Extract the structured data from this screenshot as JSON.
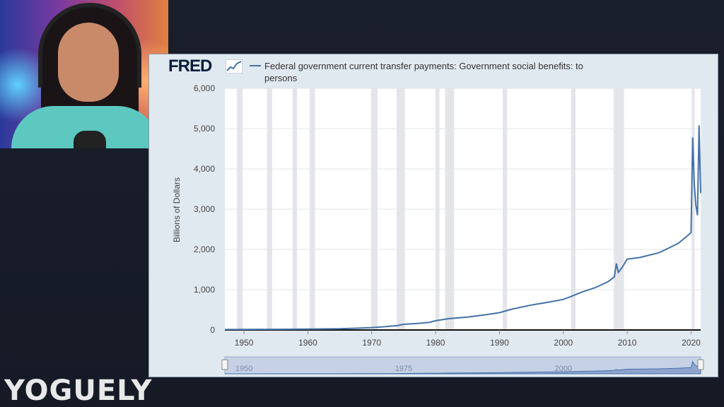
{
  "brand": "YOGUELY",
  "logo": {
    "text": "FRED",
    "icon": "chart-line-icon"
  },
  "legend": {
    "label": "Federal government current transfer payments: Government social benefits: to persons"
  },
  "chart_data": {
    "type": "line",
    "title": "",
    "ylabel": "Billions of Dollars",
    "xlabel": "",
    "xlim": [
      1947,
      2021.5
    ],
    "ylim": [
      0,
      6000
    ],
    "x_ticks": [
      1950,
      1960,
      1970,
      1980,
      1990,
      2000,
      2010,
      2020
    ],
    "y_ticks": [
      0,
      1000,
      2000,
      3000,
      4000,
      5000,
      6000
    ],
    "y_tick_labels": [
      "0",
      "1,000",
      "2,000",
      "3,000",
      "4,000",
      "5,000",
      "6,000"
    ],
    "grid": true,
    "recessions": [
      [
        1948.9,
        1949.8
      ],
      [
        1953.6,
        1954.4
      ],
      [
        1957.6,
        1958.3
      ],
      [
        1960.3,
        1961.1
      ],
      [
        1969.9,
        1970.9
      ],
      [
        1973.9,
        1975.2
      ],
      [
        1980.0,
        1980.6
      ],
      [
        1981.5,
        1982.9
      ],
      [
        1990.5,
        1991.2
      ],
      [
        2001.2,
        2001.9
      ],
      [
        2007.9,
        2009.5
      ],
      [
        2020.1,
        2020.4
      ]
    ],
    "series": [
      {
        "name": "Federal government current transfer payments: Government social benefits: to persons",
        "color": "#4472a8",
        "points": [
          [
            1947,
            10
          ],
          [
            1950,
            12
          ],
          [
            1955,
            15
          ],
          [
            1960,
            22
          ],
          [
            1965,
            30
          ],
          [
            1968,
            45
          ],
          [
            1970,
            60
          ],
          [
            1972,
            80
          ],
          [
            1974,
            110
          ],
          [
            1975,
            140
          ],
          [
            1977,
            160
          ],
          [
            1979,
            190
          ],
          [
            1980,
            230
          ],
          [
            1982,
            280
          ],
          [
            1985,
            320
          ],
          [
            1988,
            380
          ],
          [
            1990,
            430
          ],
          [
            1992,
            520
          ],
          [
            1995,
            620
          ],
          [
            1998,
            700
          ],
          [
            2000,
            760
          ],
          [
            2001,
            820
          ],
          [
            2003,
            950
          ],
          [
            2005,
            1050
          ],
          [
            2007,
            1200
          ],
          [
            2008,
            1320
          ],
          [
            2008.3,
            1650
          ],
          [
            2008.6,
            1430
          ],
          [
            2009.2,
            1550
          ],
          [
            2010,
            1760
          ],
          [
            2012,
            1800
          ],
          [
            2015,
            1920
          ],
          [
            2018,
            2150
          ],
          [
            2019.5,
            2350
          ],
          [
            2020.0,
            2420
          ],
          [
            2020.25,
            4780
          ],
          [
            2020.5,
            3600
          ],
          [
            2020.75,
            3100
          ],
          [
            2021.0,
            2850
          ],
          [
            2021.25,
            5080
          ],
          [
            2021.5,
            3400
          ]
        ]
      }
    ],
    "navigator": {
      "x_labels": [
        1950,
        1975,
        2000
      ]
    }
  }
}
